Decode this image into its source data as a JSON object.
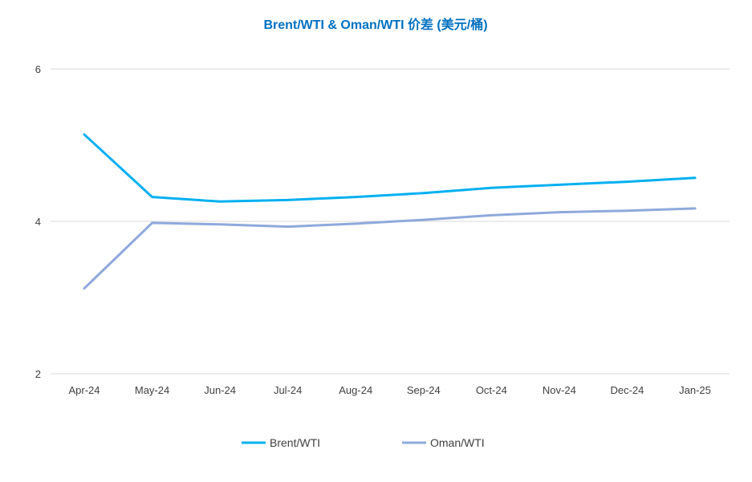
{
  "chart_data": {
    "type": "line",
    "title": "Brent/WTI & Oman/WTI 价差 (美元/桶)",
    "title_color": "#0070C0",
    "categories": [
      "Apr-24",
      "May-24",
      "Jun-24",
      "Jul-24",
      "Aug-24",
      "Sep-24",
      "Oct-24",
      "Nov-24",
      "Dec-24",
      "Jan-25"
    ],
    "series": [
      {
        "name": "Brent/WTI",
        "color": "#00B0F0",
        "values": [
          5.14,
          4.32,
          4.26,
          4.28,
          4.32,
          4.37,
          4.44,
          4.48,
          4.52,
          4.57
        ]
      },
      {
        "name": "Oman/WTI",
        "color": "#8EA9DB",
        "values": [
          3.12,
          3.98,
          3.96,
          3.93,
          3.97,
          4.02,
          4.08,
          4.12,
          4.14,
          4.17
        ]
      }
    ],
    "ylim": [
      2,
      6
    ],
    "yticks": [
      2,
      4,
      6
    ],
    "grid": true,
    "legend_position": "bottom-center"
  }
}
